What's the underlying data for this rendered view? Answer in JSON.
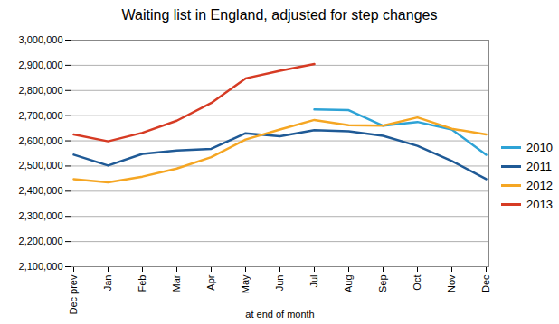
{
  "chart_data": {
    "type": "line",
    "title": "Waiting list in England, adjusted for step changes",
    "x_label": "at end of month",
    "categories": [
      "Dec prev",
      "Jan",
      "Feb",
      "Mar",
      "Apr",
      "May",
      "Jun",
      "Jul",
      "Aug",
      "Sep",
      "Oct",
      "Nov",
      "Dec"
    ],
    "series": [
      {
        "name": "2010",
        "color": "#2ea3d6",
        "values": [
          null,
          null,
          null,
          null,
          null,
          null,
          null,
          2725000,
          2722000,
          2660000,
          2675000,
          2645000,
          2545000
        ]
      },
      {
        "name": "2011",
        "color": "#1f5a96",
        "values": [
          2545000,
          2502000,
          2548000,
          2562000,
          2568000,
          2630000,
          2618000,
          2642000,
          2638000,
          2620000,
          2580000,
          2520000,
          2448000
        ]
      },
      {
        "name": "2012",
        "color": "#f5a623",
        "values": [
          2448000,
          2435000,
          2458000,
          2490000,
          2535000,
          2605000,
          2645000,
          2683000,
          2662000,
          2660000,
          2693000,
          2648000,
          2625000
        ]
      },
      {
        "name": "2013",
        "color": "#d63b24",
        "values": [
          2625000,
          2598000,
          2632000,
          2680000,
          2750000,
          2848000,
          2878000,
          2905000,
          null,
          null,
          null,
          null,
          null
        ]
      }
    ],
    "ylim": [
      2100000,
      3000000
    ],
    "yticks": [
      {
        "value": 2100000,
        "label": "2,100,000"
      },
      {
        "value": 2200000,
        "label": "2,200,000"
      },
      {
        "value": 2300000,
        "label": "2,300,000"
      },
      {
        "value": 2400000,
        "label": "2,400,000"
      },
      {
        "value": 2500000,
        "label": "2,500,000"
      },
      {
        "value": 2600000,
        "label": "2,600,000"
      },
      {
        "value": 2700000,
        "label": "2,700,000"
      },
      {
        "value": 2800000,
        "label": "2,800,000"
      },
      {
        "value": 2900000,
        "label": "2,900,000"
      },
      {
        "value": 3000000,
        "label": "3,000,000"
      }
    ],
    "grid": true,
    "legend": "right"
  }
}
